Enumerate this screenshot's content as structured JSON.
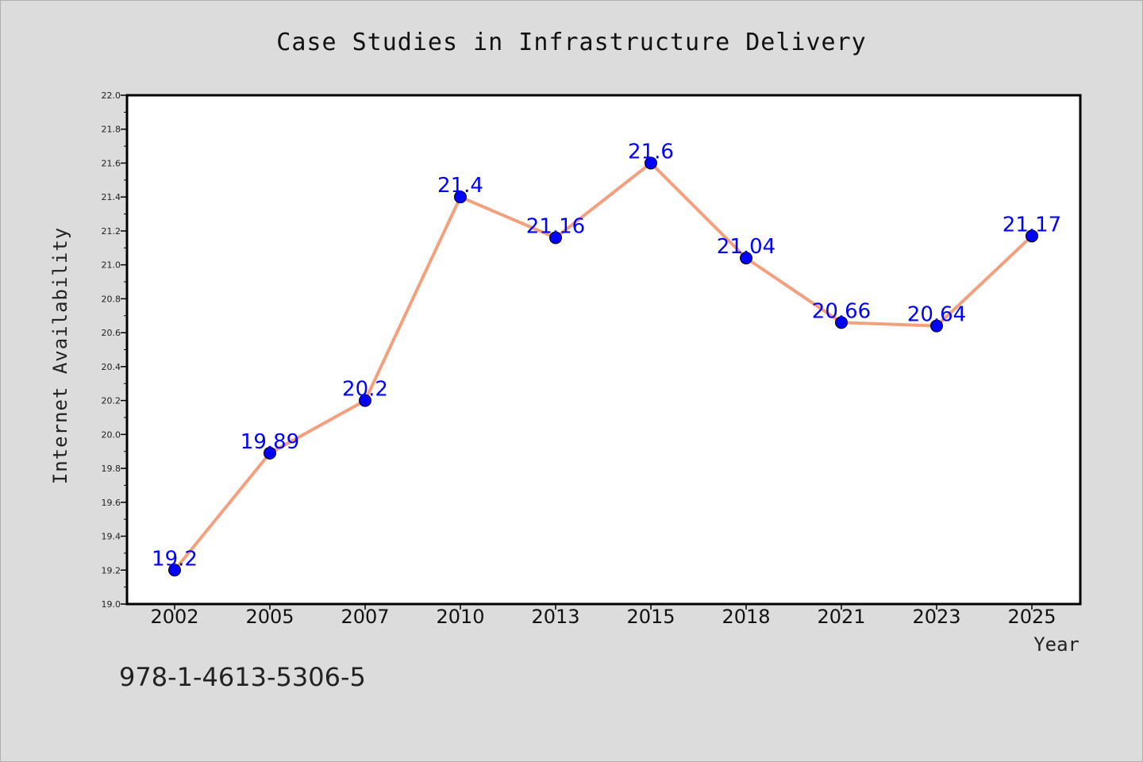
{
  "chart_data": {
    "type": "line",
    "title": "Case Studies in Infrastructure Delivery",
    "xlabel": "Year",
    "ylabel": "Internet Availability",
    "categories": [
      "2002",
      "2005",
      "2007",
      "2010",
      "2013",
      "2015",
      "2018",
      "2021",
      "2023",
      "2025"
    ],
    "series": [
      {
        "values": [
          19.2,
          19.89,
          20.2,
          21.4,
          21.16,
          21.6,
          21.04,
          20.66,
          20.64,
          21.17
        ]
      }
    ],
    "data_labels": [
      "19.2",
      "19.89",
      "20.2",
      "21.4",
      "21.16",
      "21.6",
      "21.04",
      "20.66",
      "20.64",
      "21.17"
    ],
    "ylim": [
      19.0,
      22.0
    ],
    "yticks": [
      "19.0",
      "19.2",
      "19.4",
      "19.6",
      "19.8",
      "20.0",
      "20.2",
      "20.4",
      "20.6",
      "20.8",
      "21.0",
      "21.2",
      "21.4",
      "21.6",
      "21.8",
      "22.0"
    ],
    "grid": false,
    "legend": "none",
    "colors": {
      "line": "#f4a07e",
      "marker": "#0000ff",
      "data_label": "#0000ff",
      "background": "#dcdcdc",
      "plot_background": "#ffffff"
    }
  },
  "footer": {
    "isbn": "978-1-4613-5306-5"
  }
}
